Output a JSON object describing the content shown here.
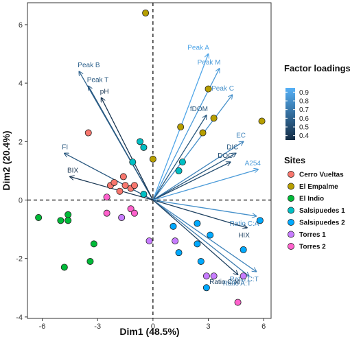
{
  "chart_data": {
    "type": "scatter",
    "xlabel": "Dim1 (48.5%)",
    "ylabel": "Dim2 (20.4%)",
    "xlim": [
      -6.8,
      6.4
    ],
    "ylim": [
      -4.05,
      6.75
    ],
    "xticks": [
      -6,
      -3,
      0,
      3,
      6
    ],
    "yticks": [
      -4,
      -2,
      0,
      2,
      4,
      6
    ],
    "grid": false,
    "reference_lines": [
      "x=0",
      "y=0"
    ],
    "loadings_legend": {
      "title": "Factor loadings",
      "ticks": [
        "0.9",
        "0.8",
        "0.7",
        "0.6",
        "0.5",
        "0.4"
      ],
      "low_color": "#132B43",
      "high_color": "#56B1F7"
    },
    "sites_legend": {
      "title": "Sites",
      "placement": "right"
    },
    "loadings": [
      {
        "label": "Peak A",
        "x": 3.0,
        "y": 5.0,
        "value": 0.9
      },
      {
        "label": "Peak M",
        "x": 3.6,
        "y": 4.5,
        "value": 0.85
      },
      {
        "label": "Peak C",
        "x": 4.3,
        "y": 3.6,
        "value": 0.8
      },
      {
        "label": "fDOM",
        "x": 2.9,
        "y": 2.9,
        "value": 0.55
      },
      {
        "label": "EC",
        "x": 4.9,
        "y": 2.0,
        "value": 0.75
      },
      {
        "label": "DIC",
        "x": 4.5,
        "y": 1.6,
        "value": 0.55
      },
      {
        "label": "DOC",
        "x": 4.2,
        "y": 1.3,
        "value": 0.5
      },
      {
        "label": "A254",
        "x": 5.7,
        "y": 1.05,
        "value": 0.85
      },
      {
        "label": "Ratio C:A",
        "x": 5.6,
        "y": -0.55,
        "value": 0.8
      },
      {
        "label": "HIX",
        "x": 5.1,
        "y": -0.95,
        "value": 0.45
      },
      {
        "label": "Ratio C:T",
        "x": 5.6,
        "y": -2.45,
        "value": 0.75
      },
      {
        "label": "Ratio A:T",
        "x": 5.2,
        "y": -2.6,
        "value": 0.7
      },
      {
        "label": "Ratio C:M",
        "x": 4.6,
        "y": -2.55,
        "value": 0.45
      },
      {
        "label": "Peak B",
        "x": -4.0,
        "y": 4.4,
        "value": 0.6
      },
      {
        "label": "Peak T",
        "x": -3.5,
        "y": 3.9,
        "value": 0.55
      },
      {
        "label": "pH",
        "x": -2.8,
        "y": 3.5,
        "value": 0.4
      },
      {
        "label": "FI",
        "x": -4.8,
        "y": 1.6,
        "value": 0.55
      },
      {
        "label": "BIX",
        "x": -4.5,
        "y": 0.8,
        "value": 0.4
      }
    ],
    "series": [
      {
        "name": "Cerro Vueltas",
        "color": "#F8766D",
        "points": [
          [
            -3.5,
            2.3
          ],
          [
            -2.3,
            0.5
          ],
          [
            -2.1,
            0.6
          ],
          [
            -1.6,
            0.8
          ],
          [
            -1.2,
            0.4
          ],
          [
            -1.0,
            0.5
          ],
          [
            -1.8,
            0.3
          ],
          [
            -1.5,
            0.5
          ]
        ]
      },
      {
        "name": "El Empalme",
        "color": "#B79F00",
        "points": [
          [
            -0.4,
            6.4
          ],
          [
            0.0,
            1.4
          ],
          [
            1.5,
            2.5
          ],
          [
            2.7,
            2.3
          ],
          [
            3.0,
            3.8
          ],
          [
            3.3,
            2.8
          ],
          [
            5.9,
            2.7
          ]
        ]
      },
      {
        "name": "El Indio",
        "color": "#00BA38",
        "points": [
          [
            -6.2,
            -0.6
          ],
          [
            -5.0,
            -0.7
          ],
          [
            -4.6,
            -0.5
          ],
          [
            -4.6,
            -0.7
          ],
          [
            -3.2,
            -1.5
          ],
          [
            -3.4,
            -2.1
          ],
          [
            -4.8,
            -2.3
          ]
        ]
      },
      {
        "name": "Salsipuedes 1",
        "color": "#00BFC4",
        "points": [
          [
            -0.7,
            2.0
          ],
          [
            -0.5,
            1.8
          ],
          [
            -1.1,
            1.3
          ],
          [
            1.6,
            1.3
          ],
          [
            1.4,
            1.0
          ],
          [
            -0.5,
            0.2
          ]
        ]
      },
      {
        "name": "Salsipuedes 2",
        "color": "#00A9FF",
        "points": [
          [
            1.1,
            -0.9
          ],
          [
            2.4,
            -0.8
          ],
          [
            3.1,
            -1.2
          ],
          [
            2.4,
            -1.5
          ],
          [
            1.4,
            -1.8
          ],
          [
            2.6,
            -2.1
          ],
          [
            4.9,
            -1.7
          ],
          [
            5.8,
            -0.7
          ],
          [
            2.9,
            -3.0
          ]
        ]
      },
      {
        "name": "Torres 1",
        "color": "#C77CFF",
        "points": [
          [
            -1.7,
            -0.6
          ],
          [
            -0.2,
            -1.4
          ],
          [
            1.2,
            -1.4
          ],
          [
            3.3,
            -2.6
          ],
          [
            2.9,
            -2.6
          ],
          [
            4.9,
            -2.6
          ]
        ]
      },
      {
        "name": "Torres 2",
        "color": "#FF61CC",
        "points": [
          [
            -2.5,
            0.1
          ],
          [
            -2.5,
            -0.45
          ],
          [
            -1.2,
            -0.3
          ],
          [
            -1.0,
            -0.45
          ],
          [
            4.6,
            -3.5
          ]
        ]
      }
    ]
  }
}
